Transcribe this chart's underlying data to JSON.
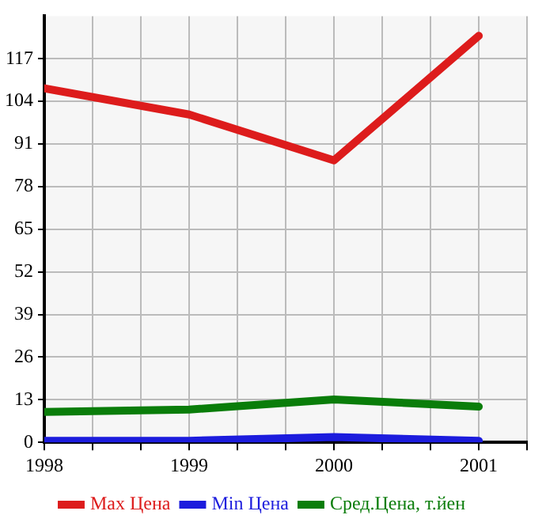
{
  "chart_data": {
    "type": "line",
    "x": [
      1998,
      1999,
      2000,
      2001
    ],
    "series": [
      {
        "name": "Max Цена",
        "color": "#dd1c1c",
        "values": [
          108,
          100,
          86,
          124
        ]
      },
      {
        "name": "Min Цена",
        "color": "#1c1cdd",
        "values": [
          0.5,
          0.5,
          1.6,
          0.5
        ]
      },
      {
        "name": "Сред.Цена, т.йен",
        "color": "#0a7d0a",
        "values": [
          9.3,
          10,
          13.1,
          10.9
        ]
      }
    ],
    "xlim": [
      1998,
      2001.333
    ],
    "xticks": [
      1998,
      {
        "value": 1998.333,
        "label": null
      },
      {
        "value": 1998.667,
        "label": null
      },
      1999,
      {
        "value": 1999.333,
        "label": null
      },
      {
        "value": 1999.667,
        "label": null
      },
      2000,
      {
        "value": 2000.333,
        "label": null
      },
      {
        "value": 2000.667,
        "label": null
      },
      2001,
      {
        "value": 2001.333,
        "label": null
      }
    ],
    "ylim": [
      0,
      130
    ],
    "yticks": [
      0,
      13,
      26,
      39,
      52,
      65,
      78,
      91,
      104,
      117
    ],
    "grid": true,
    "legend": "bottom",
    "marker": "none",
    "line_style": "solid"
  }
}
